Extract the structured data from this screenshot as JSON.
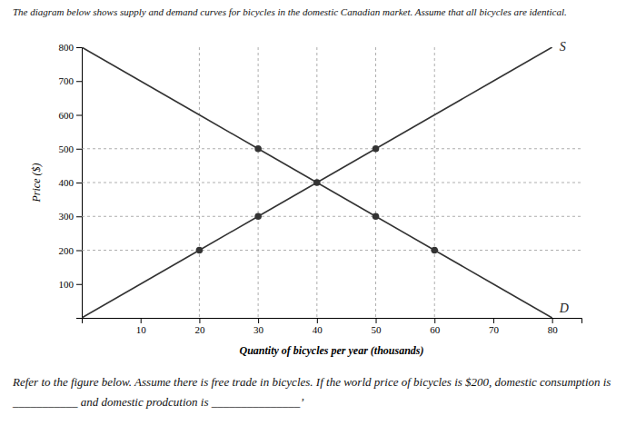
{
  "chart_data": {
    "type": "line",
    "title": "The diagram below shows supply and demand curves for bicycles in the domestic Canadian market.  Assume that all bicycles are identical.",
    "xlabel": "Quantity of bicycles per year (thousands)",
    "ylabel": "Price ($)",
    "annotations": [
      "Refer to the figure below. Assume there is free trade in bicycles. If the world price of bicycles is $200, domestic consumption is ___________ and domestic prodcution is _______________’"
    ],
    "series": [
      {
        "name": "S",
        "color": "#333333",
        "x": [
          0,
          10,
          20,
          30,
          40,
          50,
          60,
          70,
          80
        ],
        "values": [
          0,
          100,
          200,
          300,
          400,
          500,
          600,
          700,
          800
        ]
      },
      {
        "name": "D",
        "color": "#333333",
        "x": [
          0,
          10,
          20,
          30,
          40,
          50,
          60,
          70,
          80
        ],
        "values": [
          800,
          700,
          600,
          500,
          400,
          300,
          200,
          100,
          0
        ]
      },
      {
        "type": "scatter",
        "marker": "circle",
        "color": "#333333",
        "x": [
          20,
          30,
          30,
          40,
          50,
          50,
          60
        ],
        "values": [
          200,
          300,
          500,
          400,
          300,
          500,
          200
        ]
      }
    ],
    "hlines": [
      200,
      300,
      400,
      500
    ],
    "vlines": [
      20,
      30,
      40,
      50,
      60
    ],
    "xlim": [
      0,
      85
    ],
    "ylim": [
      0,
      800
    ],
    "xticks": [
      10,
      20,
      30,
      40,
      50,
      60,
      70,
      80
    ],
    "yticks": [
      100,
      200,
      300,
      400,
      500,
      600,
      700,
      800
    ],
    "grid": false
  }
}
